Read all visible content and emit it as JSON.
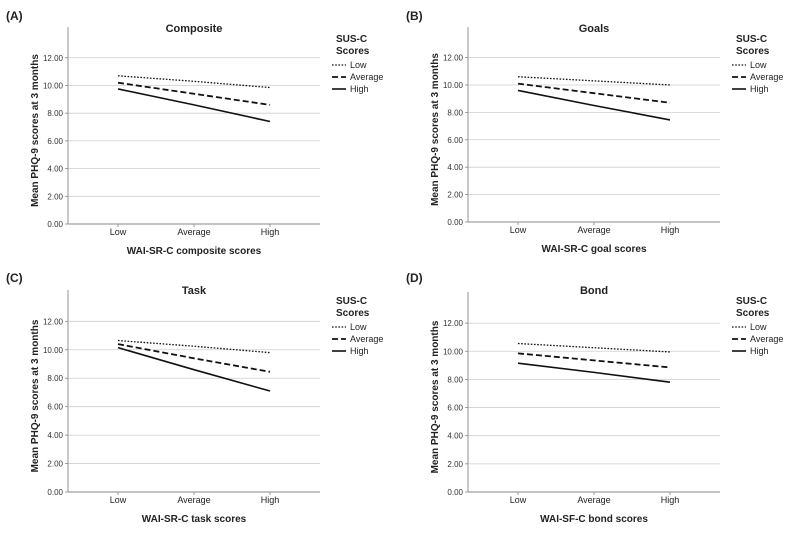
{
  "chart_data": [
    {
      "type": "line",
      "panel_label": "(A)",
      "title": "Composite",
      "xlabel": "WAI-SR-C composite scores",
      "ylabel": "Mean PHQ-9 scores at 3 months",
      "categories": [
        "Low",
        "Average",
        "High"
      ],
      "yticks": [
        "0.00",
        "2.00",
        "4.00",
        "6.00",
        "8.00",
        "10.00",
        "12.00"
      ],
      "ylim": [
        0,
        13.5
      ],
      "legend_title_1": "SUS-C",
      "legend_title_2": "Scores",
      "series": [
        {
          "name": "Low",
          "style": "dotted",
          "values": [
            10.7,
            10.3,
            9.85
          ]
        },
        {
          "name": "Average",
          "style": "dashed",
          "values": [
            10.2,
            9.4,
            8.6
          ]
        },
        {
          "name": "High",
          "style": "solid",
          "values": [
            9.75,
            8.6,
            7.4
          ]
        }
      ]
    },
    {
      "type": "line",
      "panel_label": "(B)",
      "title": "Goals",
      "xlabel": "WAI-SR-C goal scores",
      "ylabel": "Mean PHQ-9 scores at 3 months",
      "categories": [
        "Low",
        "Average",
        "High"
      ],
      "yticks": [
        "0.00",
        "2.00",
        "4.00",
        "6.00",
        "8.00",
        "10.00",
        "12.00"
      ],
      "ylim": [
        0,
        13.5
      ],
      "legend_title_1": "SUS-C",
      "legend_title_2": "Scores",
      "series": [
        {
          "name": "Low",
          "style": "dotted",
          "values": [
            10.6,
            10.3,
            10.0
          ]
        },
        {
          "name": "Average",
          "style": "dashed",
          "values": [
            10.1,
            9.4,
            8.7
          ]
        },
        {
          "name": "High",
          "style": "solid",
          "values": [
            9.6,
            8.5,
            7.45
          ]
        }
      ]
    },
    {
      "type": "line",
      "panel_label": "(C)",
      "title": "Task",
      "xlabel": "WAI-SR-C task scores",
      "ylabel": "Mean PHQ-9 scores at 3 months",
      "categories": [
        "Low",
        "Average",
        "High"
      ],
      "yticks": [
        "0.00",
        "2.00",
        "4.00",
        "6.00",
        "8.00",
        "10.00",
        "12.00"
      ],
      "ylim": [
        0,
        13.5
      ],
      "legend_title_1": "SUS-C",
      "legend_title_2": "Scores",
      "series": [
        {
          "name": "Low",
          "style": "dotted",
          "values": [
            10.65,
            10.25,
            9.8
          ]
        },
        {
          "name": "Average",
          "style": "dashed",
          "values": [
            10.4,
            9.4,
            8.45
          ]
        },
        {
          "name": "High",
          "style": "solid",
          "values": [
            10.15,
            8.6,
            7.1
          ]
        }
      ]
    },
    {
      "type": "line",
      "panel_label": "(D)",
      "title": "Bond",
      "xlabel": "WAI-SF-C bond scores",
      "ylabel": "Mean PHQ-9 scores at 3 months",
      "categories": [
        "Low",
        "Average",
        "High"
      ],
      "yticks": [
        "0.00",
        "2.00",
        "4.00",
        "6.00",
        "8.00",
        "10.00",
        "12.00"
      ],
      "ylim": [
        0,
        13.5
      ],
      "legend_title_1": "SUS-C",
      "legend_title_2": "Scores",
      "series": [
        {
          "name": "Low",
          "style": "dotted",
          "values": [
            10.55,
            10.25,
            9.95
          ]
        },
        {
          "name": "Average",
          "style": "dashed",
          "values": [
            9.85,
            9.35,
            8.85
          ]
        },
        {
          "name": "High",
          "style": "solid",
          "values": [
            9.15,
            8.5,
            7.8
          ]
        }
      ]
    }
  ]
}
